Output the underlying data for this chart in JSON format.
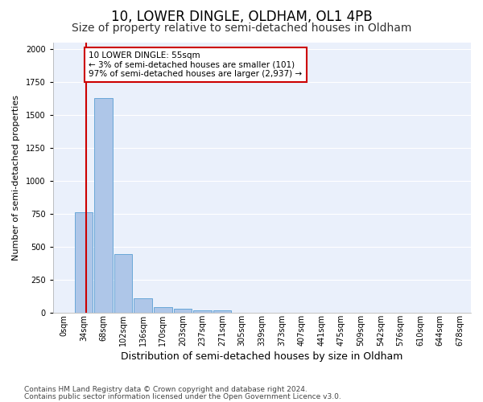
{
  "title1": "10, LOWER DINGLE, OLDHAM, OL1 4PB",
  "title2": "Size of property relative to semi-detached houses in Oldham",
  "xlabel": "Distribution of semi-detached houses by size in Oldham",
  "ylabel": "Number of semi-detached properties",
  "footnote1": "Contains HM Land Registry data © Crown copyright and database right 2024.",
  "footnote2": "Contains public sector information licensed under the Open Government Licence v3.0.",
  "bar_labels": [
    "0sqm",
    "34sqm",
    "68sqm",
    "102sqm",
    "136sqm",
    "170sqm",
    "203sqm",
    "237sqm",
    "271sqm",
    "305sqm",
    "339sqm",
    "373sqm",
    "407sqm",
    "441sqm",
    "475sqm",
    "509sqm",
    "542sqm",
    "576sqm",
    "610sqm",
    "644sqm",
    "678sqm"
  ],
  "bar_values": [
    0,
    760,
    1630,
    445,
    110,
    45,
    30,
    22,
    20,
    0,
    0,
    0,
    0,
    0,
    0,
    0,
    0,
    0,
    0,
    0,
    0
  ],
  "bar_color": "#aec6e8",
  "bar_edge_color": "#5a9fd4",
  "property_line_color": "#cc0000",
  "annotation_line1": "10 LOWER DINGLE: 55sqm",
  "annotation_line2": "← 3% of semi-detached houses are smaller (101)",
  "annotation_line3": "97% of semi-detached houses are larger (2,937) →",
  "annotation_box_color": "#ffffff",
  "annotation_box_edge": "#cc0000",
  "ylim": [
    0,
    2050
  ],
  "bg_color": "#eaf0fb",
  "grid_color": "#ffffff",
  "title1_fontsize": 12,
  "title2_fontsize": 10,
  "xlabel_fontsize": 9,
  "ylabel_fontsize": 8,
  "tick_fontsize": 7,
  "footnote_fontsize": 6.5,
  "annotation_fontsize": 7.5
}
